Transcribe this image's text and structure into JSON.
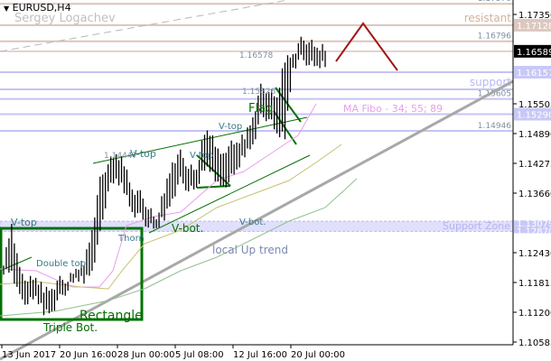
{
  "header": {
    "symbol": "EURUSD,H4",
    "author": "Sergey Logachev"
  },
  "chart_data": {
    "type": "ohlc-bar",
    "symbol": "EURUSD",
    "timeframe": "H4",
    "ylim": [
      1.104,
      1.178
    ],
    "y_ticks": [
      "1.17350",
      "1.16735",
      "1.16120",
      "1.15505",
      "1.14890",
      "1.14275",
      "1.13660",
      "1.13045",
      "1.12430",
      "1.11815",
      "1.11200",
      "1.10585"
    ],
    "x_ticks": [
      "13 Jun 2017",
      "20 Jun 16:00",
      "28 Jun 00:00",
      "5 Jul 08:00",
      "12 Jul 16:00",
      "20 Jul 00:00"
    ],
    "current_price": "1.16589",
    "bars": [
      [
        1.12244,
        1.12057
      ],
      [
        1.13026,
        1.12057
      ],
      [
        1.12057,
        1.11498
      ],
      [
        1.11871,
        1.11405
      ],
      [
        1.11871,
        1.11498
      ],
      [
        1.11685,
        1.11219
      ],
      [
        1.11685,
        1.11219
      ],
      [
        1.11871,
        1.11498
      ],
      [
        1.11871,
        1.11685
      ],
      [
        1.12057,
        1.11871
      ],
      [
        1.12244,
        1.11871
      ],
      [
        1.12896,
        1.12057
      ],
      [
        1.13921,
        1.12803
      ],
      [
        1.14294,
        1.13735
      ],
      [
        1.14424,
        1.13921
      ],
      [
        1.14294,
        1.13735
      ],
      [
        1.13735,
        1.13269
      ],
      [
        1.13641,
        1.13176
      ],
      [
        1.13362,
        1.12989
      ],
      [
        1.13082,
        1.12896
      ],
      [
        1.13735,
        1.13176
      ],
      [
        1.14294,
        1.13548
      ],
      [
        1.1448,
        1.13921
      ],
      [
        1.14201,
        1.13735
      ],
      [
        1.14107,
        1.13735
      ],
      [
        1.14946,
        1.14201
      ],
      [
        1.14853,
        1.14107
      ],
      [
        1.14387,
        1.13735
      ],
      [
        1.14666,
        1.13921
      ],
      [
        1.14666,
        1.14107
      ],
      [
        1.14853,
        1.1448
      ],
      [
        1.15226,
        1.14666
      ],
      [
        1.1584,
        1.15226
      ],
      [
        1.15785,
        1.15226
      ],
      [
        1.15598,
        1.14853
      ],
      [
        1.16437,
        1.14853
      ],
      [
        1.1653,
        1.1625
      ],
      [
        1.1681,
        1.16437
      ],
      [
        1.1681,
        1.16344
      ],
      [
        1.16623,
        1.1625
      ],
      [
        1.16679,
        1.16344
      ]
    ],
    "levels": [
      {
        "price": 1.1757,
        "label": "1.17570",
        "kind": "resistance"
      },
      {
        "price": 1.17128,
        "label": "resistant",
        "tag": "1.17128",
        "kind": "resistance"
      },
      {
        "price": 1.16796,
        "label": "1.16796",
        "kind": "resistance"
      },
      {
        "price": 1.16157,
        "tag": "1.16157",
        "kind": "support"
      },
      {
        "price": 1.15803,
        "label": "support",
        "kind": "support"
      },
      {
        "price": 1.15605,
        "label": "1.15605",
        "kind": "support"
      },
      {
        "price": 1.1529,
        "tag": "1.15290",
        "kind": "support"
      },
      {
        "price": 1.14946,
        "label": "1.14946",
        "kind": "support"
      }
    ],
    "support_zone": {
      "label": "Support Zone",
      "top": "1.13079",
      "bottom": "1.12870"
    },
    "price_notes": [
      "1.16578",
      "1.15826",
      "1.14447"
    ],
    "annotations": [
      "V-top",
      "Double top",
      "Thorn",
      "Rectangle",
      "Triple Bot.",
      "V-top",
      "V-top",
      "V-top",
      "V-bot.",
      "V-bot.",
      "Flag",
      "MA Fibo - 34; 55; 89",
      "local Up trend"
    ],
    "colors": {
      "resistance": "#dcc4bc",
      "support": "#c4c4f4",
      "tag_res": "#dcc8c0",
      "tag_sup": "#c8c8f8",
      "pattern": "#007000",
      "forecast": "#a01818",
      "trend": "#a8a8a8",
      "ma34": "#e8a0e8",
      "ma55": "#c8c070",
      "ma89": "#90c090",
      "annot": "#3a7a8a"
    }
  }
}
